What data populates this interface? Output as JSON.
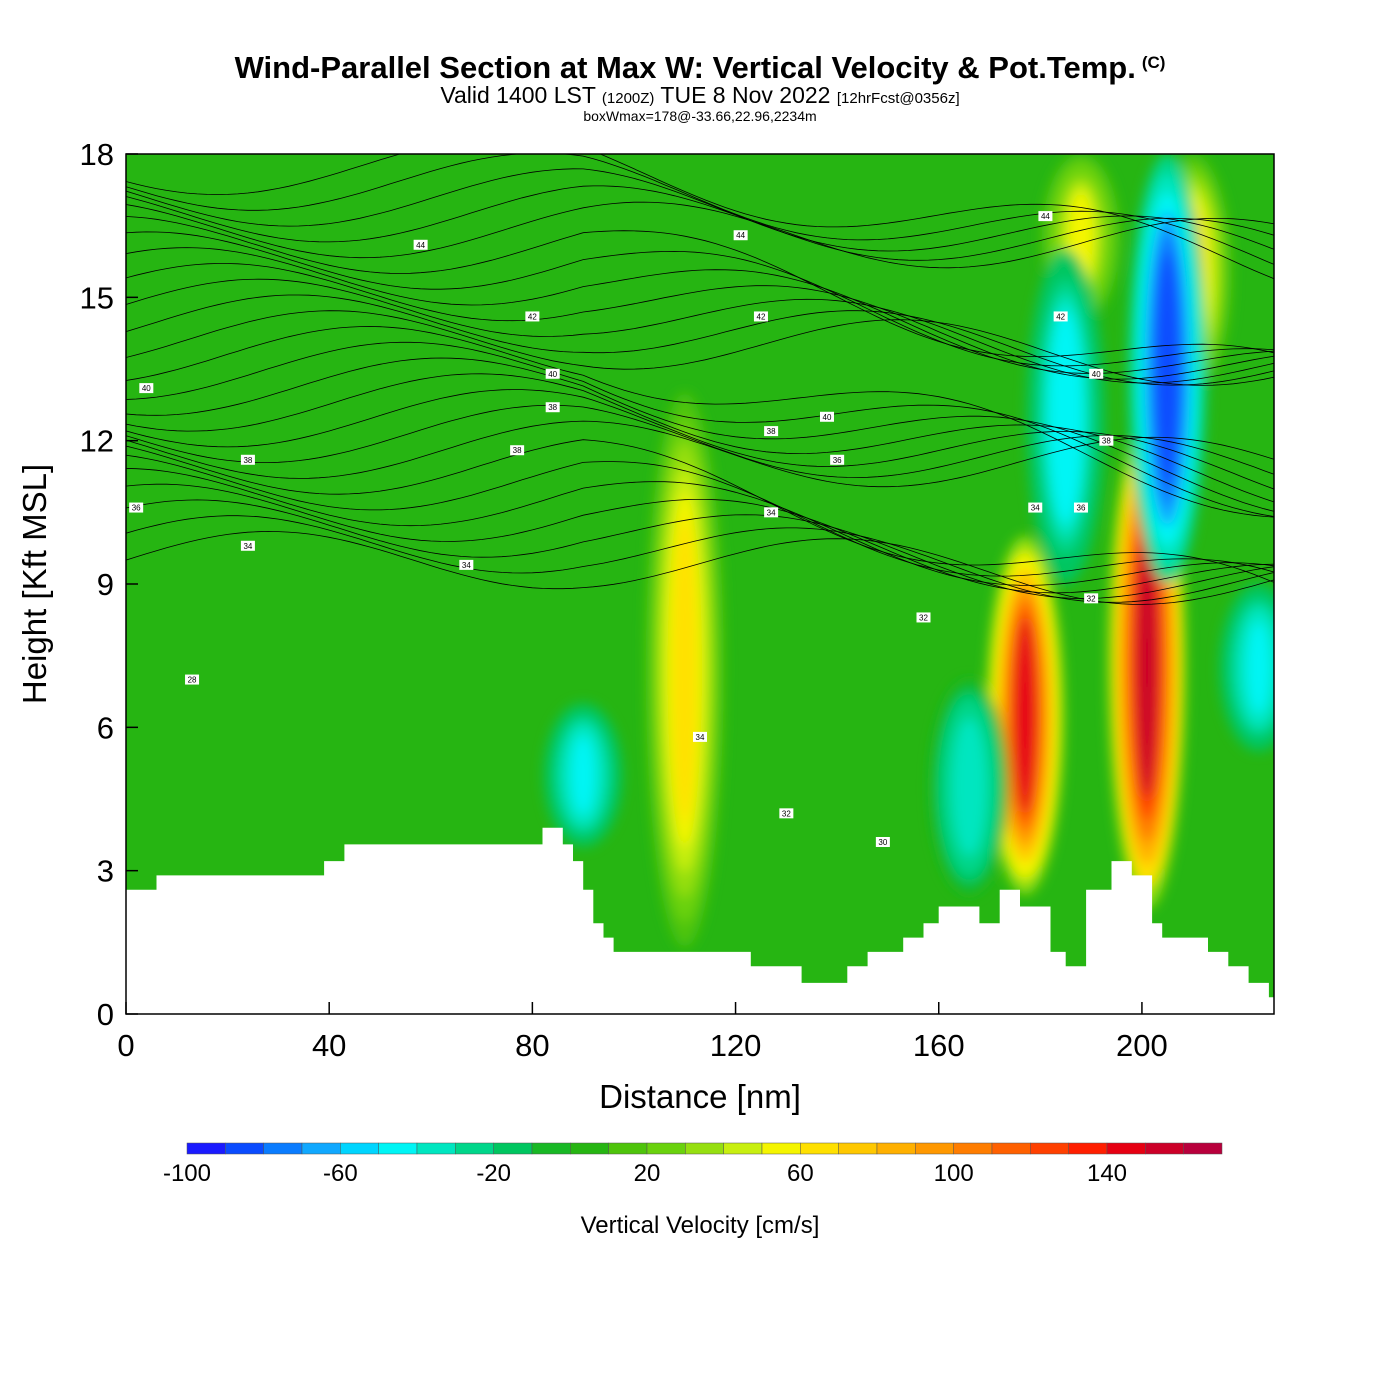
{
  "chart_data": {
    "type": "heatmap",
    "title": "Wind-Parallel Section at Max W: Vertical Velocity & Pot.Temp.",
    "title_mark": "(C)",
    "subtitle": {
      "main_a": "Valid 1400 LST",
      "zulu": "(1200Z)",
      "main_b": "TUE 8 Nov 2022",
      "fcst": "[12hrFcst@0356z]"
    },
    "subtitle2": "boxWmax=178@-33.66,22.96,2234m",
    "xlabel": "Distance [nm]",
    "ylabel": "Height [Kft MSL]",
    "xlim": [
      0,
      226
    ],
    "ylim": [
      0,
      18
    ],
    "x_ticks": [
      0,
      40,
      80,
      120,
      160,
      200
    ],
    "y_ticks": [
      0,
      3,
      6,
      9,
      12,
      15,
      18
    ],
    "grid": false,
    "colorbar": {
      "label": "Vertical Velocity [cm/s]",
      "ticks": [
        -100,
        -60,
        -20,
        20,
        60,
        100,
        140
      ],
      "levels": [
        -100,
        -90,
        -80,
        -70,
        -60,
        -50,
        -40,
        -30,
        -20,
        -10,
        0,
        10,
        20,
        30,
        40,
        50,
        60,
        70,
        80,
        90,
        100,
        110,
        120,
        130,
        140,
        150,
        160,
        170
      ],
      "colors": [
        "#1a1aff",
        "#0a4bff",
        "#0a7cff",
        "#10a8ff",
        "#00d5ff",
        "#00f5f5",
        "#00e6c0",
        "#00d68a",
        "#00c660",
        "#18b825",
        "#26b512",
        "#4ec40b",
        "#6ad20d",
        "#96df10",
        "#c8ef10",
        "#f5f500",
        "#ffe000",
        "#ffc800",
        "#ffb000",
        "#ff9800",
        "#ff7d00",
        "#ff6000",
        "#ff4000",
        "#ff1e00",
        "#e60012",
        "#cc0028",
        "#b8003c"
      ]
    },
    "vertical_velocity_features": [
      {
        "x": 110,
        "y_base": 1.4,
        "y_top": 13.0,
        "w_max": 62
      },
      {
        "x": 177,
        "y_base": 2.5,
        "y_top": 10.0,
        "w_max": 140
      },
      {
        "x": 201,
        "y_base": 2.2,
        "y_top": 12.5,
        "w_max": 150
      },
      {
        "x": 210,
        "y_base": 13.0,
        "y_top": 18.0,
        "w_max": 70
      },
      {
        "x": 188,
        "y_base": 14.5,
        "y_top": 18.0,
        "w_max": 50
      },
      {
        "x": 205,
        "y_base": 9.0,
        "y_top": 18.0,
        "w_max": -90
      },
      {
        "x": 185,
        "y_base": 9.0,
        "y_top": 16.0,
        "w_max": -50
      },
      {
        "x": 90,
        "y_base": 3.5,
        "y_top": 6.5,
        "w_max": -45
      },
      {
        "x": 166,
        "y_base": 2.5,
        "y_top": 7.0,
        "w_max": -40
      },
      {
        "x": 223,
        "y_base": 5.5,
        "y_top": 9.0,
        "w_max": -45
      }
    ],
    "terrain": {
      "x": [
        0,
        6,
        6,
        39,
        39,
        43,
        43,
        82,
        82,
        86,
        86,
        88,
        88,
        90,
        90,
        92,
        92,
        94,
        94,
        96,
        96,
        99,
        99,
        123,
        123,
        133,
        133,
        142,
        142,
        146,
        146,
        153,
        153,
        157,
        157,
        160,
        160,
        168,
        168,
        172,
        172,
        176,
        176,
        182,
        182,
        185,
        185,
        189,
        189,
        194,
        194,
        198,
        198,
        202,
        202,
        204,
        204,
        213,
        213,
        217,
        217,
        221,
        221,
        225,
        225,
        226
      ],
      "height_kft": [
        2.6,
        2.6,
        2.9,
        2.9,
        3.2,
        3.2,
        3.55,
        3.55,
        3.9,
        3.9,
        3.55,
        3.55,
        3.2,
        3.2,
        2.6,
        2.6,
        1.9,
        1.9,
        1.6,
        1.6,
        1.3,
        1.3,
        1.3,
        1.3,
        1.0,
        1.0,
        0.65,
        0.65,
        1.0,
        1.0,
        1.3,
        1.3,
        1.6,
        1.6,
        1.9,
        1.9,
        2.25,
        2.25,
        1.9,
        1.9,
        2.6,
        2.6,
        2.25,
        2.25,
        1.3,
        1.3,
        1.0,
        1.0,
        2.6,
        2.6,
        3.2,
        3.2,
        2.9,
        2.9,
        1.9,
        1.9,
        1.6,
        1.6,
        1.3,
        1.3,
        1.0,
        1.0,
        0.65,
        0.65,
        0.35,
        0.35
      ]
    },
    "pot_temp_contour_labels": [
      {
        "x": 58,
        "y": 16.1,
        "label": "44"
      },
      {
        "x": 121,
        "y": 16.3,
        "label": "44"
      },
      {
        "x": 181,
        "y": 16.7,
        "label": "44"
      },
      {
        "x": 80,
        "y": 14.6,
        "label": "42"
      },
      {
        "x": 125,
        "y": 14.6,
        "label": "42"
      },
      {
        "x": 184,
        "y": 14.6,
        "label": "42"
      },
      {
        "x": 4,
        "y": 13.1,
        "label": "40"
      },
      {
        "x": 84,
        "y": 13.4,
        "label": "40"
      },
      {
        "x": 138,
        "y": 12.5,
        "label": "40"
      },
      {
        "x": 191,
        "y": 13.4,
        "label": "40"
      },
      {
        "x": 84,
        "y": 12.7,
        "label": "38"
      },
      {
        "x": 127,
        "y": 12.2,
        "label": "38"
      },
      {
        "x": 77,
        "y": 11.8,
        "label": "38"
      },
      {
        "x": 24,
        "y": 11.6,
        "label": "38"
      },
      {
        "x": 193,
        "y": 12.0,
        "label": "38"
      },
      {
        "x": 2,
        "y": 10.6,
        "label": "36"
      },
      {
        "x": 140,
        "y": 11.6,
        "label": "36"
      },
      {
        "x": 188,
        "y": 10.6,
        "label": "36"
      },
      {
        "x": 24,
        "y": 9.8,
        "label": "34"
      },
      {
        "x": 127,
        "y": 10.5,
        "label": "34"
      },
      {
        "x": 67,
        "y": 9.4,
        "label": "34"
      },
      {
        "x": 179,
        "y": 10.6,
        "label": "34"
      },
      {
        "x": 113,
        "y": 5.8,
        "label": "34"
      },
      {
        "x": 157,
        "y": 8.3,
        "label": "32"
      },
      {
        "x": 190,
        "y": 8.7,
        "label": "32"
      },
      {
        "x": 130,
        "y": 4.2,
        "label": "32"
      },
      {
        "x": 13,
        "y": 7.0,
        "label": "28"
      },
      {
        "x": 149,
        "y": 3.6,
        "label": "30"
      }
    ]
  }
}
